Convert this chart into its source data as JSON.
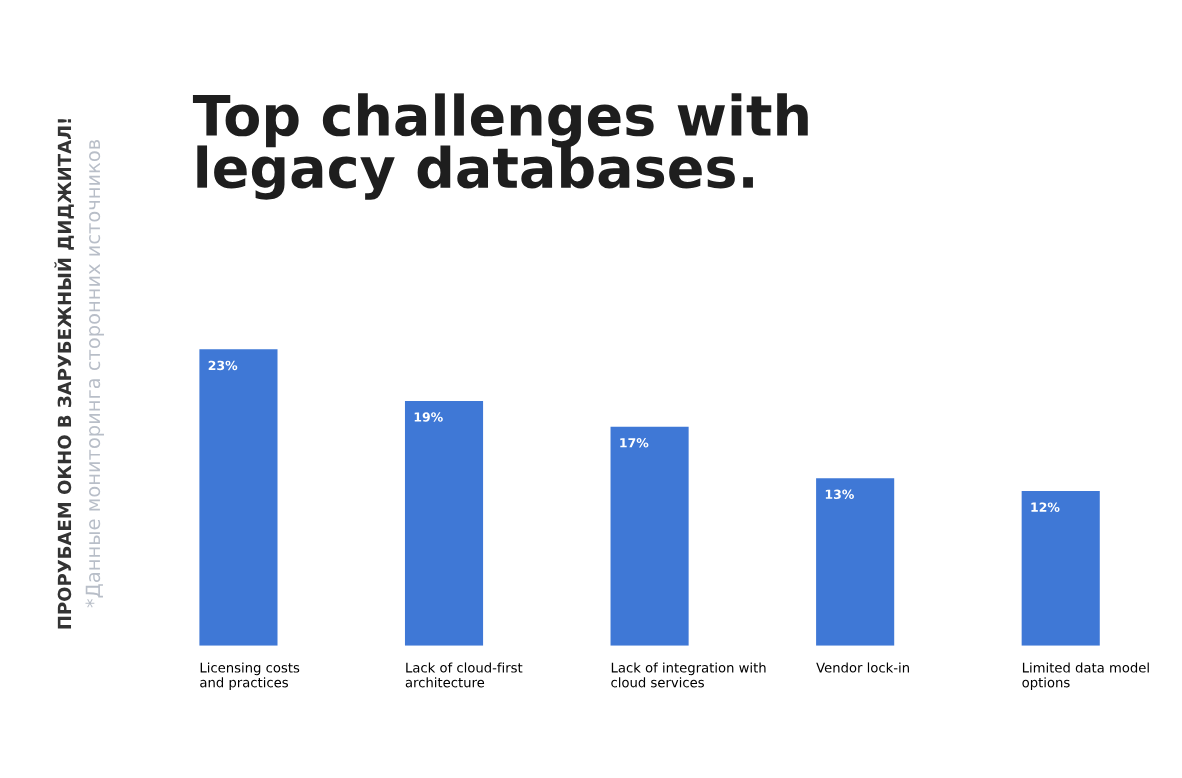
{
  "chart_data": {
    "type": "bar",
    "title": "Top challenges with\nlegacy databases.",
    "categories": [
      "Licensing costs\nand practices",
      "Lack of cloud-first\narchitecture",
      "Lack of integration with\ncloud services",
      "Vendor lock-in",
      "Limited data model\noptions"
    ],
    "values": [
      23,
      19,
      17,
      13,
      12
    ],
    "value_labels": [
      "23%",
      "19%",
      "17%",
      "13%",
      "12%"
    ],
    "color": "#3f78d6",
    "annotations": [
      "ПРОРУБАЕМ ОКНО В ЗАРУБЕЖНЫЙ ДИДЖИТАЛ!",
      "*Данные мониторинга сторонних источников"
    ]
  }
}
